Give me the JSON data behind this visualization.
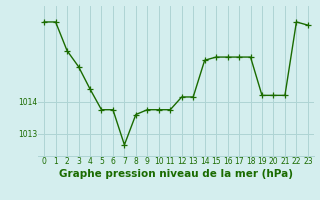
{
  "x": [
    0,
    1,
    2,
    3,
    4,
    5,
    6,
    7,
    8,
    9,
    10,
    11,
    12,
    13,
    14,
    15,
    16,
    17,
    18,
    19,
    20,
    21,
    22,
    23
  ],
  "y": [
    1016.5,
    1016.5,
    1015.6,
    1015.1,
    1014.4,
    1013.75,
    1013.75,
    1012.65,
    1013.6,
    1013.75,
    1013.75,
    1013.75,
    1014.15,
    1014.15,
    1015.3,
    1015.4,
    1015.4,
    1015.4,
    1015.4,
    1014.2,
    1014.2,
    1014.2,
    1016.5,
    1016.4
  ],
  "line_color": "#1a6b00",
  "marker": "+",
  "bg_color": "#d4eeee",
  "grid_color": "#aed4d4",
  "xlabel": "Graphe pression niveau de la mer (hPa)",
  "xlabel_fontsize": 7.5,
  "yticks": [
    1013,
    1014
  ],
  "ylim": [
    1012.3,
    1017.0
  ],
  "xlim": [
    -0.5,
    23.5
  ],
  "xtick_labels": [
    "0",
    "1",
    "2",
    "3",
    "4",
    "5",
    "6",
    "7",
    "8",
    "9",
    "10",
    "11",
    "12",
    "13",
    "14",
    "15",
    "16",
    "17",
    "18",
    "19",
    "20",
    "21",
    "22",
    "23"
  ],
  "tick_fontsize": 5.5,
  "line_width": 1.0,
  "marker_size": 4
}
